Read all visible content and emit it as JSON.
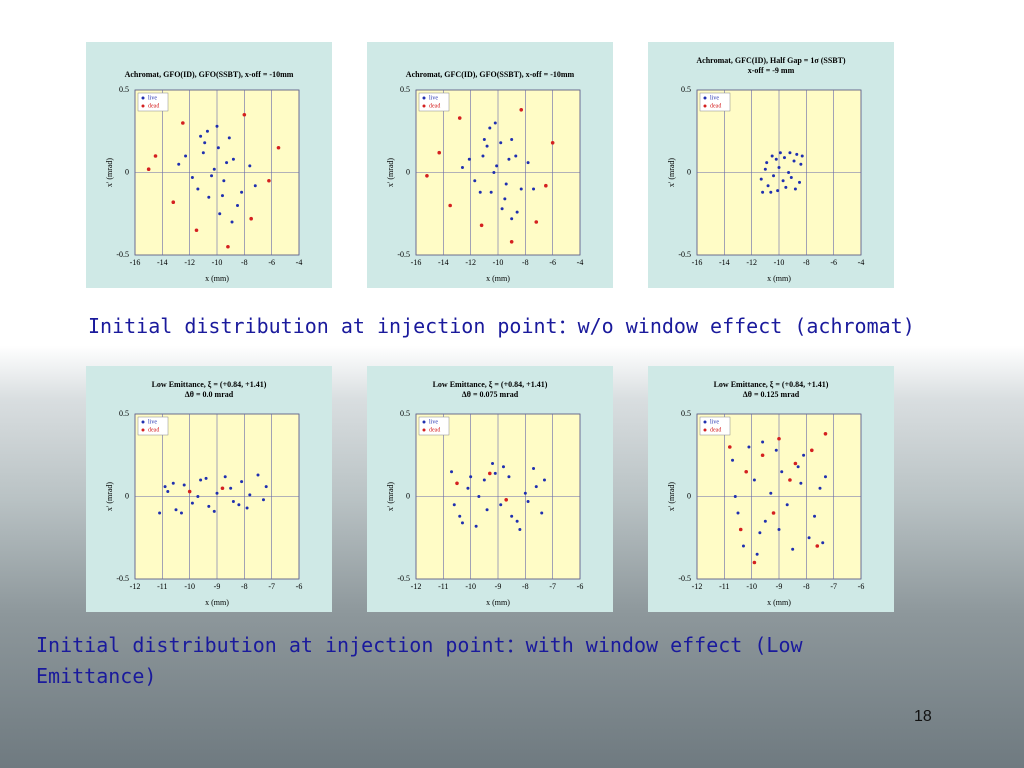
{
  "chart_data": [
    {
      "type": "scatter",
      "title": "Achromat, GFO(ID), GFO(SSBT), x-off = -10mm",
      "x_label": "x (mm)",
      "y_label": "x' (mrad)",
      "xlim": [
        -16,
        -4
      ],
      "xticks": [
        -16,
        -14,
        -12,
        -10,
        -8,
        -6,
        -4
      ],
      "ylim": [
        -0.5,
        0.5
      ],
      "yticks": [
        -0.5,
        0,
        0.5
      ],
      "grid": true,
      "legend": "upper left",
      "series": [
        {
          "name": "live",
          "color": "#1f2fb0",
          "x": [
            -10.2,
            -9.5,
            -11.0,
            -8.8,
            -10.6,
            -9.1,
            -11.8,
            -8.2,
            -10.0,
            -12.3,
            -7.6,
            -9.8,
            -10.9,
            -8.5,
            -11.4,
            -9.3,
            -10.4,
            -12.8,
            -7.2,
            -9.9,
            -10.7,
            -8.9,
            -11.2,
            -9.6
          ],
          "values": [
            0.02,
            -0.05,
            0.12,
            0.08,
            -0.15,
            0.21,
            -0.03,
            -0.12,
            0.28,
            0.1,
            0.04,
            -0.25,
            0.18,
            -0.2,
            -0.1,
            0.06,
            -0.02,
            0.05,
            -0.08,
            0.15,
            0.25,
            -0.3,
            0.22,
            -0.14
          ]
        },
        {
          "name": "dead",
          "color": "#d42020",
          "x": [
            -14.5,
            -6.2,
            -12.5,
            -7.5,
            -13.2,
            -8.0,
            -11.5,
            -9.2,
            -15.0,
            -5.5
          ],
          "values": [
            0.1,
            -0.05,
            0.3,
            -0.28,
            -0.18,
            0.35,
            -0.35,
            -0.45,
            0.02,
            0.15
          ]
        }
      ]
    },
    {
      "type": "scatter",
      "title": "Achromat, GFC(ID), GFO(SSBT), x-off = -10mm",
      "x_label": "x (mm)",
      "y_label": "x' (mrad)",
      "xlim": [
        -16,
        -4
      ],
      "xticks": [
        -16,
        -14,
        -12,
        -10,
        -8,
        -6,
        -4
      ],
      "ylim": [
        -0.5,
        0.5
      ],
      "yticks": [
        -0.5,
        0,
        0.5
      ],
      "grid": true,
      "legend": "upper left",
      "series": [
        {
          "name": "live",
          "color": "#1f2fb0",
          "x": [
            -10.1,
            -9.4,
            -11.1,
            -8.7,
            -10.5,
            -9.0,
            -11.7,
            -8.3,
            -10.2,
            -12.1,
            -7.8,
            -9.7,
            -10.8,
            -8.6,
            -11.3,
            -9.2,
            -10.3,
            -12.6,
            -7.4,
            -9.8,
            -10.6,
            -9.0,
            -11.0,
            -9.5
          ],
          "values": [
            0.04,
            -0.07,
            0.1,
            0.1,
            -0.12,
            0.2,
            -0.05,
            -0.1,
            0.3,
            0.08,
            0.06,
            -0.22,
            0.16,
            -0.24,
            -0.12,
            0.08,
            0.0,
            0.03,
            -0.1,
            0.18,
            0.27,
            -0.28,
            0.2,
            -0.16
          ]
        },
        {
          "name": "dead",
          "color": "#d42020",
          "x": [
            -14.3,
            -6.5,
            -12.8,
            -7.2,
            -13.5,
            -8.3,
            -11.2,
            -9.0,
            -15.2,
            -6.0
          ],
          "values": [
            0.12,
            -0.08,
            0.33,
            -0.3,
            -0.2,
            0.38,
            -0.32,
            -0.42,
            -0.02,
            0.18
          ]
        }
      ]
    },
    {
      "type": "scatter",
      "title": "Achromat, GFC(ID), Half Gap = 1σ (SSBT)",
      "subtitle": "x-off = -9 mm",
      "x_label": "x (mm)",
      "y_label": "x' (mrad)",
      "xlim": [
        -16,
        -4
      ],
      "xticks": [
        -16,
        -14,
        -12,
        -10,
        -8,
        -6,
        -4
      ],
      "ylim": [
        -0.5,
        0.5
      ],
      "yticks": [
        -0.5,
        0,
        0.5
      ],
      "grid": true,
      "legend": "upper left",
      "series": [
        {
          "name": "live",
          "color": "#1f2fb0",
          "x": [
            -11.2,
            -10.8,
            -10.4,
            -10.0,
            -9.6,
            -9.2,
            -8.8,
            -8.4,
            -11.0,
            -10.5,
            -10.1,
            -9.7,
            -9.3,
            -8.9,
            -8.5,
            -11.3,
            -10.9,
            -10.2,
            -9.5,
            -8.7,
            -10.6,
            -9.9,
            -9.1,
            -8.3
          ],
          "values": [
            -0.12,
            -0.08,
            -0.02,
            0.03,
            0.09,
            0.12,
            -0.1,
            0.05,
            0.02,
            0.1,
            -0.11,
            -0.05,
            0.0,
            0.07,
            -0.06,
            -0.04,
            0.06,
            0.08,
            -0.09,
            0.11,
            -0.12,
            0.12,
            -0.03,
            0.1
          ]
        },
        {
          "name": "dead",
          "color": "#d42020",
          "x": [],
          "values": []
        }
      ]
    },
    {
      "type": "scatter",
      "title": "Low Emittance, ξ = (+0.84, +1.41)",
      "subtitle": "Δθ = 0.0 mrad",
      "x_label": "x (mm)",
      "y_label": "x' (mrad)",
      "xlim": [
        -12,
        -6
      ],
      "xticks": [
        -12,
        -11,
        -10,
        -9,
        -8,
        -7,
        -6
      ],
      "ylim": [
        -0.5,
        0.5
      ],
      "yticks": [
        -0.5,
        0,
        0.5
      ],
      "grid": true,
      "legend": "upper left",
      "series": [
        {
          "name": "live",
          "color": "#1f2fb0",
          "x": [
            -11.1,
            -10.8,
            -10.5,
            -10.2,
            -9.9,
            -9.6,
            -9.3,
            -9.0,
            -8.7,
            -8.4,
            -8.1,
            -7.8,
            -7.5,
            -7.2,
            -10.9,
            -10.3,
            -9.7,
            -9.1,
            -8.5,
            -7.9,
            -7.3,
            -10.6,
            -9.4,
            -8.2
          ],
          "values": [
            -0.1,
            0.03,
            -0.08,
            0.07,
            -0.04,
            0.1,
            -0.06,
            0.02,
            0.12,
            -0.03,
            0.09,
            0.01,
            0.13,
            0.06,
            0.06,
            -0.1,
            0.0,
            -0.09,
            0.05,
            -0.07,
            -0.02,
            0.08,
            0.11,
            -0.05
          ]
        },
        {
          "name": "dead",
          "color": "#d42020",
          "x": [
            -10.0,
            -8.8
          ],
          "values": [
            0.03,
            0.05
          ]
        }
      ]
    },
    {
      "type": "scatter",
      "title": "Low Emittance, ξ = (+0.84, +1.41)",
      "subtitle": "Δθ = 0.075 mrad",
      "x_label": "x (mm)",
      "y_label": "x' (mrad)",
      "xlim": [
        -12,
        -6
      ],
      "xticks": [
        -12,
        -11,
        -10,
        -9,
        -8,
        -7,
        -6
      ],
      "ylim": [
        -0.5,
        0.5
      ],
      "yticks": [
        -0.5,
        0,
        0.5
      ],
      "grid": true,
      "legend": "upper left",
      "series": [
        {
          "name": "live",
          "color": "#1f2fb0",
          "x": [
            -10.7,
            -10.4,
            -10.1,
            -9.8,
            -9.5,
            -9.2,
            -8.9,
            -8.6,
            -8.3,
            -8.0,
            -7.7,
            -7.4,
            -10.6,
            -10.0,
            -9.4,
            -8.8,
            -8.2,
            -7.6,
            -10.3,
            -9.7,
            -9.1,
            -8.5,
            -7.9,
            -7.3
          ],
          "values": [
            0.15,
            -0.12,
            0.05,
            -0.18,
            0.1,
            0.2,
            -0.05,
            0.12,
            -0.15,
            0.02,
            0.17,
            -0.1,
            -0.05,
            0.12,
            -0.08,
            0.18,
            -0.2,
            0.06,
            -0.16,
            0.0,
            0.14,
            -0.12,
            -0.03,
            0.1
          ]
        },
        {
          "name": "dead",
          "color": "#d42020",
          "x": [
            -10.5,
            -8.7,
            -9.3
          ],
          "values": [
            0.08,
            -0.02,
            0.14
          ]
        }
      ]
    },
    {
      "type": "scatter",
      "title": "Low Emittance, ξ = (+0.84, +1.41)",
      "subtitle": "Δθ = 0.125 mrad",
      "x_label": "x (mm)",
      "y_label": "x' (mrad)",
      "xlim": [
        -12,
        -6
      ],
      "xticks": [
        -12,
        -11,
        -10,
        -9,
        -8,
        -7,
        -6
      ],
      "ylim": [
        -0.5,
        0.5
      ],
      "yticks": [
        -0.5,
        0,
        0.5
      ],
      "grid": true,
      "legend": "upper left",
      "series": [
        {
          "name": "live",
          "color": "#1f2fb0",
          "x": [
            -10.7,
            -10.3,
            -9.9,
            -9.5,
            -9.1,
            -8.7,
            -8.3,
            -7.9,
            -7.5,
            -10.5,
            -10.1,
            -9.7,
            -9.3,
            -8.9,
            -8.5,
            -8.1,
            -7.7,
            -7.3,
            -10.6,
            -9.8,
            -9.0,
            -8.2,
            -7.4,
            -9.6
          ],
          "values": [
            0.22,
            -0.3,
            0.1,
            -0.15,
            0.28,
            -0.05,
            0.18,
            -0.25,
            0.05,
            -0.1,
            0.3,
            -0.22,
            0.02,
            0.15,
            -0.32,
            0.25,
            -0.12,
            0.12,
            0.0,
            -0.35,
            -0.2,
            0.08,
            -0.28,
            0.33
          ]
        },
        {
          "name": "dead",
          "color": "#d42020",
          "x": [
            -10.8,
            -10.2,
            -9.6,
            -9.0,
            -8.4,
            -7.8,
            -7.3,
            -10.4,
            -9.2,
            -8.6,
            -7.6,
            -9.9
          ],
          "values": [
            0.3,
            0.15,
            0.25,
            0.35,
            0.2,
            0.28,
            0.38,
            -0.2,
            -0.1,
            0.1,
            -0.3,
            -0.4
          ]
        }
      ]
    }
  ],
  "captions": [
    "Initial distribution at injection point：w/o window effect (achromat)",
    "Initial distribution at injection point：with window effect (Low Emittance)"
  ],
  "page_number": "18"
}
